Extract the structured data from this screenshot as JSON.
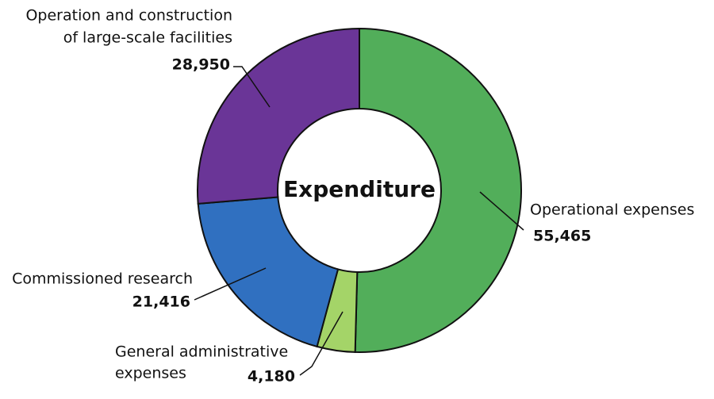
{
  "chart_data": {
    "type": "donut",
    "title": "Expenditure",
    "categories": [
      [
        "Operational expenses"
      ],
      [
        "General administrative",
        "expenses"
      ],
      [
        "Commissioned research"
      ],
      [
        "Operation and construction",
        "of large-scale facilities"
      ]
    ],
    "values": [
      55465,
      4180,
      21416,
      28950
    ],
    "value_labels": [
      "55,465",
      "4,180",
      "21,416",
      "28,950"
    ],
    "colors": [
      "#52ae5a",
      "#a4d468",
      "#3070c0",
      "#6a3597"
    ]
  }
}
